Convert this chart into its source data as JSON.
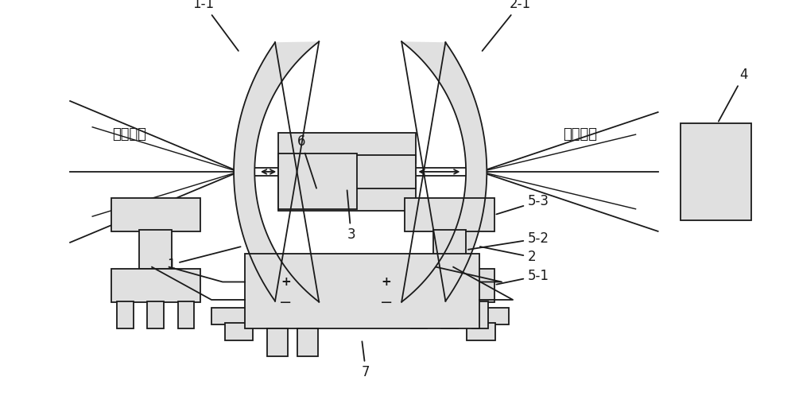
{
  "bg_color": "#ffffff",
  "line_color": "#1a1a1a",
  "fill_color": "#e0e0e0",
  "labels": {
    "gaussian_left": "高斯光束",
    "gaussian_right": "高斯光束",
    "label_1_1": "1-1",
    "label_2_1": "2-1",
    "label_1": "1",
    "label_2": "2",
    "label_3": "3",
    "label_4": "4",
    "label_5_1": "5-1",
    "label_5_2": "5-2",
    "label_5_3": "5-3",
    "label_6": "6",
    "label_7": "7"
  }
}
